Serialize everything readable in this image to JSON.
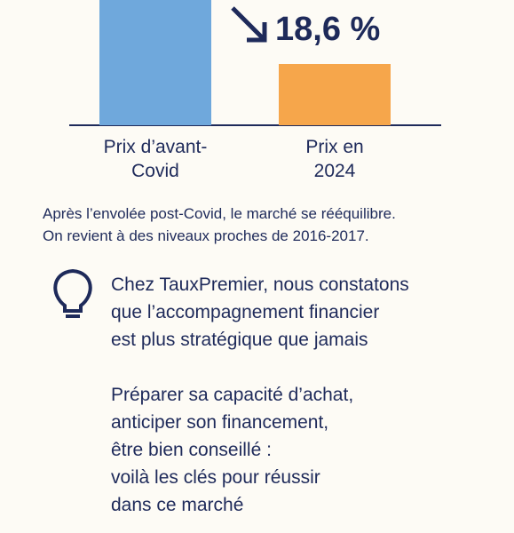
{
  "chart_data": {
    "type": "bar",
    "categories": [
      "Prix d’avant-\nCovid",
      "Prix en\n2024"
    ],
    "series": [
      {
        "colors": [
          "#6fa8dc",
          "#f6a64b"
        ],
        "values": [
          100,
          48
        ]
      }
    ],
    "ylim": [
      0,
      100
    ],
    "annotation": "18,6 %"
  },
  "caption": [
    "Après l’envolée post-Covid, le marché se rééquilibre.",
    "On revient à des niveaux proches de 2016-2017."
  ],
  "paragraphs": [
    [
      "Chez TauxPremier, nous constatons",
      "que l’accompagnement financier",
      "est plus stratégique que jamais"
    ],
    [
      "Préparer sa capacité d’achat,",
      "anticiper son financement,",
      "être bien conseillé :",
      "voilà les clés pour réussir",
      "dans ce marché"
    ]
  ]
}
